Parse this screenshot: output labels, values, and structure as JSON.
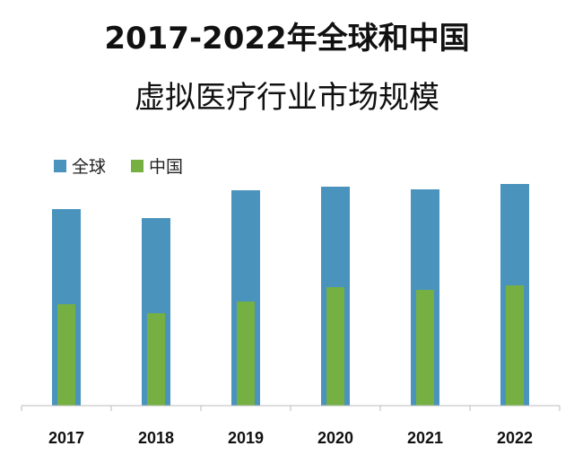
{
  "chart_data": {
    "type": "bar",
    "title": [
      "2017-2022年全球和中国",
      "虚拟医疗行业市场规模"
    ],
    "categories": [
      "2017",
      "2018",
      "2019",
      "2020",
      "2021",
      "2022"
    ],
    "series": [
      {
        "name": "全球",
        "color": "#4a93bd",
        "values": [
          219,
          209,
          240,
          244,
          241,
          247
        ]
      },
      {
        "name": "中国",
        "color": "#76b043",
        "values": [
          113,
          103,
          116,
          132,
          129,
          134
        ]
      }
    ],
    "xlabel": "",
    "ylabel": "",
    "y_axis_visible": false,
    "grid": false,
    "legend_position": "top-left",
    "bar_layout": "overlapped"
  }
}
